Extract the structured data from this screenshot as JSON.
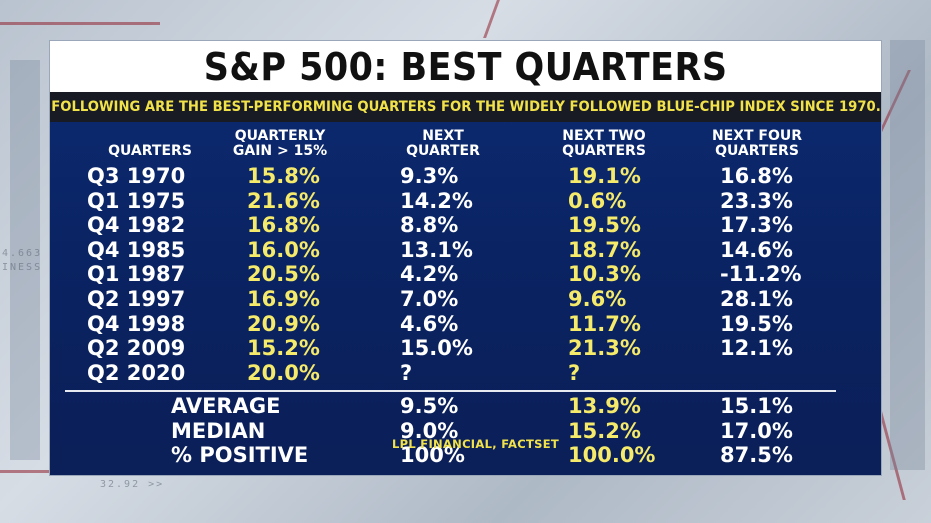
{
  "header": {
    "title": "S&P 500: BEST QUARTERS",
    "subtitle": "FOLLOWING ARE THE BEST-PERFORMING QUARTERS FOR THE WIDELY FOLLOWED BLUE-CHIP INDEX SINCE 1970."
  },
  "source": "LPL FINANCIAL, FACTSET",
  "colors": {
    "panel": "#0b2463",
    "title_bg": "#ffffff",
    "subtitle_bg": "#181b24",
    "highlight": "#f5ea6a",
    "text": "#ffffff"
  },
  "chart_data": {
    "type": "table",
    "title": "S&P 500: BEST QUARTERS",
    "columns": [
      "QUARTERS",
      "QUARTERLY GAIN > 15%",
      "NEXT QUARTER",
      "NEXT TWO QUARTERS",
      "NEXT FOUR QUARTERS"
    ],
    "column_lines": [
      [
        "QUARTERS"
      ],
      [
        "QUARTERLY",
        "GAIN > 15%"
      ],
      [
        "NEXT",
        "QUARTER"
      ],
      [
        "NEXT TWO",
        "QUARTERS"
      ],
      [
        "NEXT FOUR",
        "QUARTERS"
      ]
    ],
    "rows": [
      [
        "Q3 1970",
        "15.8%",
        "9.3%",
        "19.1%",
        "16.8%"
      ],
      [
        "Q1 1975",
        "21.6%",
        "14.2%",
        "0.6%",
        "23.3%"
      ],
      [
        "Q4 1982",
        "16.8%",
        "8.8%",
        "19.5%",
        "17.3%"
      ],
      [
        "Q4 1985",
        "16.0%",
        "13.1%",
        "18.7%",
        "14.6%"
      ],
      [
        "Q1 1987",
        "20.5%",
        "4.2%",
        "10.3%",
        "-11.2%"
      ],
      [
        "Q2 1997",
        "16.9%",
        "7.0%",
        "9.6%",
        "28.1%"
      ],
      [
        "Q4 1998",
        "20.9%",
        "4.6%",
        "11.7%",
        "19.5%"
      ],
      [
        "Q2 2009",
        "15.2%",
        "15.0%",
        "21.3%",
        "12.1%"
      ],
      [
        "Q2 2020",
        "20.0%",
        "?",
        "?",
        ""
      ]
    ],
    "summary": [
      [
        "AVERAGE",
        "9.5%",
        "13.9%",
        "15.1%"
      ],
      [
        "MEDIAN",
        "9.0%",
        "15.2%",
        "17.0%"
      ],
      [
        "% POSITIVE",
        "100%",
        "100.0%",
        "87.5%"
      ]
    ],
    "highlight_columns": [
      1,
      3
    ]
  }
}
